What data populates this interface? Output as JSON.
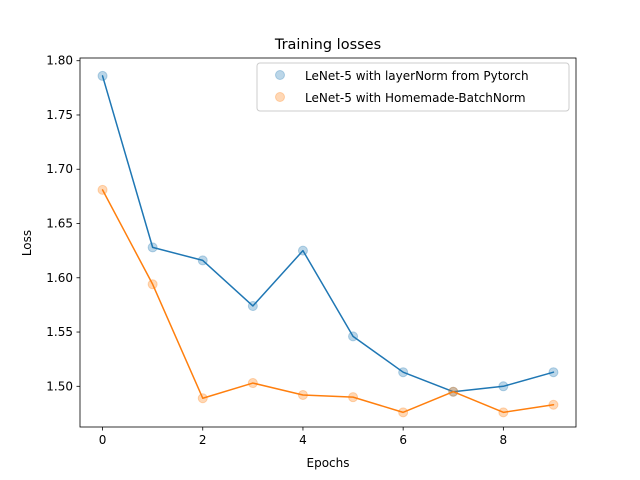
{
  "chart_data": {
    "type": "line",
    "title": "Training losses",
    "xlabel": "Epochs",
    "ylabel": "Loss",
    "xlim": [
      -0.45,
      9.45
    ],
    "ylim": [
      1.4625,
      1.8025
    ],
    "xticks": [
      0,
      2,
      4,
      6,
      8
    ],
    "yticks": [
      1.5,
      1.55,
      1.6,
      1.65,
      1.7,
      1.75,
      1.8
    ],
    "grid": false,
    "legend_position": "top-right",
    "x": [
      0,
      1,
      2,
      3,
      4,
      5,
      6,
      7,
      8,
      9
    ],
    "series": [
      {
        "name": "LeNet-5 with layerNorm from Pytorch",
        "color": "#1f77b4",
        "values": [
          1.786,
          1.628,
          1.616,
          1.574,
          1.625,
          1.546,
          1.513,
          1.495,
          1.5,
          1.513
        ]
      },
      {
        "name": "LeNet-5 with Homemade-BatchNorm",
        "color": "#ff7f0e",
        "values": [
          1.681,
          1.594,
          1.489,
          1.503,
          1.492,
          1.49,
          1.476,
          1.495,
          1.476,
          1.483
        ]
      }
    ]
  }
}
